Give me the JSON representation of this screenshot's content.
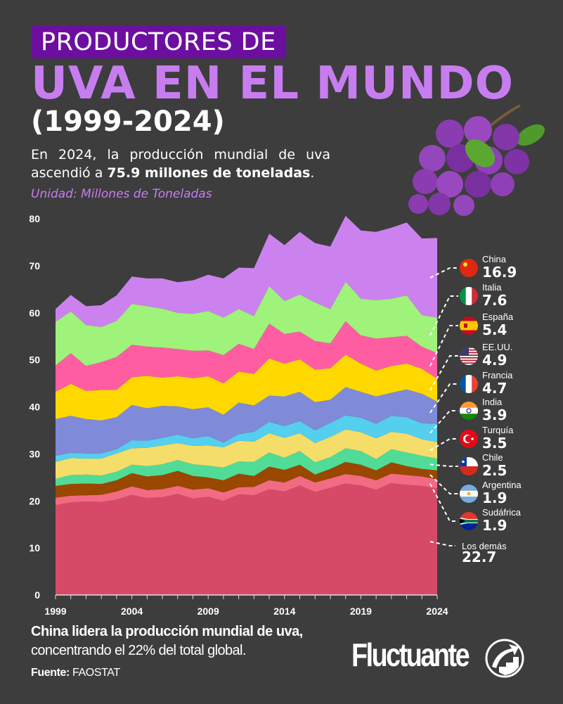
{
  "header": {
    "title_line1": "PRODUCTORES DE",
    "title_line2": "UVA EN EL MUNDO",
    "title_line3": "(1999-2024)",
    "description_prefix": "En 2024, la producción mundial de uva ascendió a ",
    "description_bold": "75.9 millones de toneladas",
    "description_suffix": ".",
    "unit": "Unidad: Millones de Toneladas"
  },
  "footer": {
    "insight_bold": "China lidera la producción mundial de uva,",
    "insight_rest": "concentrando el 22% del total global.",
    "source_label": "Fuente:",
    "source_value": "FAOSTAT",
    "logo": "Fluctuante"
  },
  "chart_data": {
    "type": "area",
    "stacked": true,
    "title": "UVA EN EL MUNDO",
    "ylabel": "Unidad: Millones de Toneladas",
    "xlim": [
      1999,
      2024
    ],
    "ylim": [
      0,
      80
    ],
    "y_ticks": [
      "0",
      "10",
      "20",
      "30",
      "40",
      "50",
      "60",
      "70",
      "80"
    ],
    "x_ticks": [
      "1999",
      "2004",
      "2009",
      "2014",
      "2019",
      "2024"
    ],
    "grid": false,
    "legend_placement": "right",
    "x": [
      1999,
      2000,
      2001,
      2002,
      2003,
      2004,
      2005,
      2006,
      2007,
      2008,
      2009,
      2010,
      2011,
      2012,
      2013,
      2014,
      2015,
      2016,
      2017,
      2018,
      2019,
      2020,
      2021,
      2022,
      2023,
      2024
    ],
    "series": [
      {
        "name": "Los demás",
        "label_2024": "22.7",
        "color": "#d64a68",
        "flag": "",
        "values": [
          19.1,
          19.7,
          19.9,
          19.8,
          20.3,
          21.3,
          20.6,
          20.8,
          21.5,
          20.5,
          20.9,
          20.0,
          21.4,
          21.2,
          22.5,
          22.0,
          23.3,
          21.9,
          22.8,
          23.7,
          23.3,
          22.4,
          23.8,
          23.4,
          23.2,
          22.7
        ]
      },
      {
        "name": "Sudáfrica",
        "label_2024": "1.9",
        "color": "#f26b82",
        "flag": "za",
        "values": [
          1.6,
          1.4,
          1.3,
          1.5,
          1.7,
          1.8,
          1.7,
          1.7,
          1.7,
          1.9,
          1.8,
          1.8,
          1.5,
          1.8,
          1.9,
          1.9,
          2.0,
          2.0,
          2.0,
          2.0,
          2.0,
          2.0,
          2.0,
          2.1,
          2.0,
          1.9
        ]
      },
      {
        "name": "Argentina",
        "label_2024": "1.9",
        "color": "#9a4700",
        "flag": "ar",
        "values": [
          2.5,
          2.5,
          2.5,
          2.3,
          2.4,
          2.8,
          2.9,
          3.0,
          3.2,
          2.9,
          2.3,
          2.6,
          2.9,
          2.3,
          2.9,
          2.7,
          2.4,
          1.7,
          2.0,
          2.6,
          2.4,
          2.1,
          2.4,
          1.9,
          1.6,
          1.9
        ]
      },
      {
        "name": "Chile",
        "label_2024": "2.5",
        "color": "#50dc96",
        "flag": "cl",
        "values": [
          1.5,
          1.9,
          1.9,
          1.8,
          1.8,
          1.8,
          2.2,
          2.3,
          2.3,
          2.5,
          2.5,
          2.7,
          2.6,
          3.0,
          3.0,
          2.6,
          2.9,
          2.6,
          2.5,
          2.9,
          2.9,
          2.4,
          2.8,
          2.9,
          2.8,
          2.5
        ]
      },
      {
        "name": "Turquía",
        "label_2024": "3.5",
        "color": "#f5dd6a",
        "flag": "tr",
        "values": [
          3.6,
          3.6,
          3.4,
          3.6,
          3.9,
          3.5,
          3.9,
          4.0,
          3.6,
          3.9,
          4.3,
          4.3,
          4.4,
          4.3,
          4.1,
          4.2,
          3.8,
          4.1,
          4.3,
          4.0,
          4.0,
          4.4,
          3.7,
          4.0,
          3.5,
          3.5
        ]
      },
      {
        "name": "India",
        "label_2024": "3.9",
        "color": "#55cfee",
        "flag": "in",
        "values": [
          1.3,
          1.1,
          1.1,
          1.1,
          0.9,
          1.7,
          1.5,
          1.6,
          1.8,
          1.6,
          2.0,
          1.0,
          1.4,
          2.1,
          2.4,
          2.5,
          2.6,
          2.7,
          3.0,
          3.0,
          3.1,
          3.1,
          3.4,
          3.5,
          3.4,
          3.9
        ]
      },
      {
        "name": "Francia",
        "label_2024": "4.7",
        "color": "#7f8ad8",
        "flag": "fr",
        "values": [
          7.8,
          7.9,
          7.3,
          7.0,
          6.8,
          7.5,
          6.9,
          6.8,
          6.0,
          6.2,
          6.1,
          5.9,
          6.7,
          5.6,
          5.6,
          6.3,
          6.2,
          6.0,
          4.9,
          6.0,
          5.5,
          5.8,
          4.9,
          5.9,
          6.3,
          4.7
        ]
      },
      {
        "name": "EE.UU.",
        "label_2024": "4.9",
        "color": "#ffd800",
        "flag": "us",
        "values": [
          5.8,
          6.8,
          6.0,
          6.5,
          5.8,
          5.9,
          6.9,
          6.0,
          6.4,
          6.6,
          6.6,
          6.7,
          6.6,
          6.7,
          7.9,
          7.0,
          6.9,
          6.9,
          6.7,
          6.9,
          6.0,
          5.5,
          5.7,
          5.5,
          5.3,
          4.9
        ]
      },
      {
        "name": "España",
        "label_2024": "5.4",
        "color": "#ff5da2",
        "flag": "es",
        "values": [
          5.6,
          6.5,
          5.3,
          5.9,
          7.0,
          6.9,
          6.2,
          6.4,
          5.8,
          5.8,
          5.5,
          6.0,
          5.9,
          5.3,
          7.4,
          6.3,
          5.9,
          6.1,
          5.3,
          7.1,
          6.0,
          6.8,
          6.1,
          5.9,
          4.7,
          5.4
        ]
      },
      {
        "name": "Italia",
        "label_2024": "7.6",
        "color": "#9ff27a",
        "flag": "it",
        "values": [
          9.3,
          8.9,
          8.7,
          7.5,
          7.7,
          8.7,
          8.6,
          8.3,
          7.7,
          7.9,
          8.4,
          8.0,
          7.4,
          7.0,
          8.0,
          7.0,
          7.9,
          8.2,
          7.3,
          8.4,
          7.8,
          8.2,
          8.2,
          8.6,
          6.7,
          7.6
        ]
      },
      {
        "name": "China",
        "label_2024": "16.9",
        "color": "#cc82ee",
        "flag": "cn",
        "values": [
          2.7,
          3.5,
          4.0,
          4.6,
          5.4,
          5.8,
          5.9,
          6.4,
          6.5,
          7.1,
          7.7,
          8.3,
          8.8,
          10.2,
          11.1,
          11.9,
          13.3,
          12.6,
          13.3,
          14.0,
          14.5,
          14.5,
          15.1,
          15.5,
          16.3,
          16.9
        ]
      }
    ],
    "total_2024": "75.9"
  },
  "colors": {
    "background": "#3d3d3d",
    "accent": "#c77df0",
    "title_box": "#6c0fa0"
  }
}
